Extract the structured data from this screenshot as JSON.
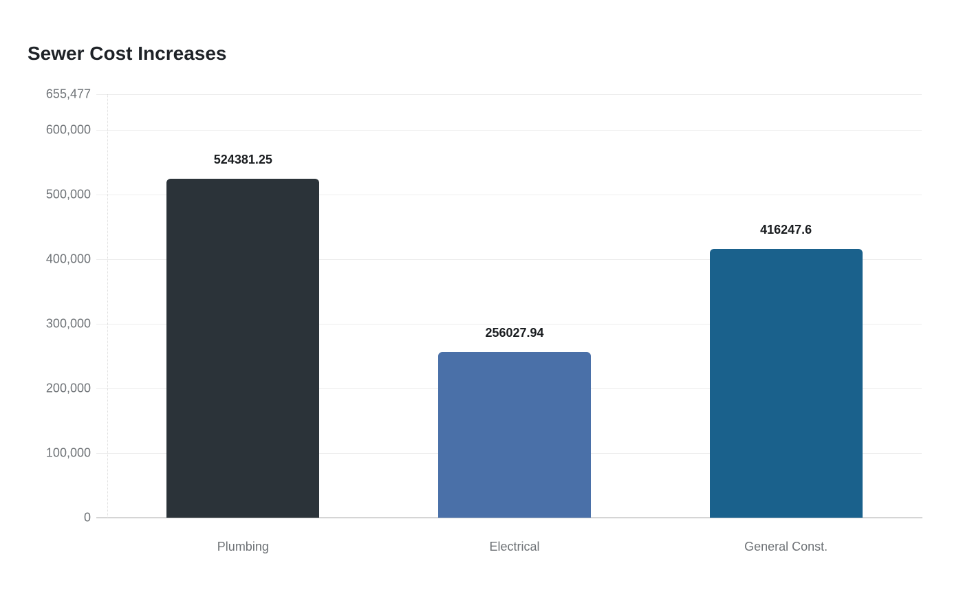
{
  "title": "Sewer Cost Increases",
  "chart_data": {
    "type": "bar",
    "title": "Sewer Cost Increases",
    "categories": [
      "Plumbing",
      "Electrical",
      "General Const."
    ],
    "values": [
      524381.25,
      256027.94,
      416247.6
    ],
    "value_labels": [
      "524381.25",
      "256027.94",
      "416247.6"
    ],
    "bar_colors": [
      "#2b3339",
      "#4a70a8",
      "#1a618c"
    ],
    "xlabel": "",
    "ylabel": "",
    "ylim": [
      0,
      655477
    ],
    "yticks": [
      {
        "label": "0",
        "value": 0
      },
      {
        "label": "100,000",
        "value": 100000
      },
      {
        "label": "200,000",
        "value": 200000
      },
      {
        "label": "300,000",
        "value": 300000
      },
      {
        "label": "400,000",
        "value": 400000
      },
      {
        "label": "500,000",
        "value": 500000
      },
      {
        "label": "600,000",
        "value": 600000
      },
      {
        "label": "655,477",
        "value": 655477
      }
    ],
    "grid": true,
    "legend": false
  },
  "colors": {
    "background": "#ffffff",
    "title_text": "#1e2227",
    "axis_label_text": "#6d7175",
    "value_label_text": "#1a1d20",
    "gridline": "#ededed",
    "baseline": "#d5d5d5"
  }
}
